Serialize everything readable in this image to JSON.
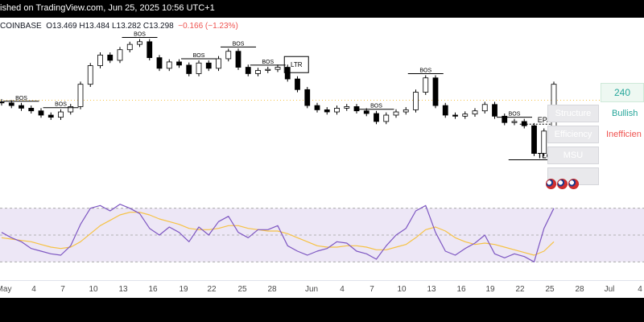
{
  "header": {
    "published_text": "ished on TradingView.com, Jun 25, 2025 10:56 UTC+1"
  },
  "symbol": {
    "exchange": "COINBASE",
    "ohlc": "O13.469  H13.484  L13.282  C13.298",
    "change": "−0.166 (−1.23%)"
  },
  "panel": {
    "timeframe": "240",
    "rows": [
      {
        "label": "Structure",
        "value": "Bullish",
        "color": "#26a69a"
      },
      {
        "label": "Efficiency",
        "value": "Inefficien",
        "color": "#ef5350"
      },
      {
        "label": "MSU",
        "value": "",
        "color": ""
      },
      {
        "label": "",
        "value": "",
        "color": ""
      }
    ]
  },
  "markers": {
    "bos": "BOS",
    "ltr": "LTR",
    "epa": "EPA",
    "tlq": "TLQ"
  },
  "colors": {
    "up_candle": "#ffffff",
    "down_candle": "#000000",
    "rsi_line": "#7e57c2",
    "rsi_ma": "#f6c244",
    "rsi_band": "#ede7f6",
    "bull": "#26a69a",
    "bear": "#ef5350"
  },
  "chart_data": [
    {
      "type": "candlestick",
      "ylim": [
        11.6,
        14.4
      ],
      "x": [
        "Apr 30",
        "May 1",
        "May 2",
        "May 3",
        "May 4",
        "May 5",
        "May 6",
        "May 7",
        "May 8",
        "May 9",
        "May 10",
        "May 11",
        "May 12",
        "May 13",
        "May 14",
        "May 15",
        "May 16",
        "May 17",
        "May 18",
        "May 19",
        "May 20",
        "May 21",
        "May 22",
        "May 23",
        "May 24",
        "May 25",
        "May 26",
        "May 27",
        "May 28",
        "May 29",
        "May 30",
        "May 31",
        "Jun 1",
        "Jun 2",
        "Jun 3",
        "Jun 4",
        "Jun 5",
        "Jun 6",
        "Jun 7",
        "Jun 8",
        "Jun 9",
        "Jun 10",
        "Jun 11",
        "Jun 12",
        "Jun 13",
        "Jun 14",
        "Jun 15",
        "Jun 16",
        "Jun 17",
        "Jun 18",
        "Jun 19",
        "Jun 20",
        "Jun 21",
        "Jun 22",
        "Jun 23",
        "Jun 24",
        "Jun 25"
      ],
      "close": [
        12.95,
        12.9,
        12.85,
        12.8,
        12.72,
        12.68,
        12.78,
        12.88,
        13.3,
        13.65,
        13.85,
        13.75,
        13.95,
        14.05,
        14.1,
        13.8,
        13.6,
        13.72,
        13.66,
        13.5,
        13.7,
        13.6,
        13.78,
        13.92,
        13.62,
        13.5,
        13.56,
        13.58,
        13.62,
        13.4,
        13.2,
        12.9,
        12.82,
        12.78,
        12.85,
        12.88,
        12.8,
        12.75,
        12.6,
        12.72,
        12.78,
        12.82,
        13.15,
        13.42,
        12.9,
        12.72,
        12.7,
        12.74,
        12.8,
        12.92,
        12.7,
        12.58,
        12.6,
        12.52,
        12.0,
        12.42,
        13.3
      ],
      "events": [
        {
          "label": "BOS",
          "date": "May 2"
        },
        {
          "label": "BOS",
          "date": "May 6"
        },
        {
          "label": "BOS",
          "date": "May 14"
        },
        {
          "label": "BOS",
          "date": "May 20"
        },
        {
          "label": "BOS",
          "date": "May 24"
        },
        {
          "label": "BOS",
          "date": "May 27"
        },
        {
          "label": "LTR",
          "date": "May 29"
        },
        {
          "label": "BOS",
          "date": "Jun 7"
        },
        {
          "label": "BOS",
          "date": "Jun 12"
        },
        {
          "label": "BOS",
          "date": "Jun 21"
        },
        {
          "label": "EPA",
          "date": "Jun 24"
        },
        {
          "label": "TLQ",
          "date": "Jun 24"
        }
      ]
    },
    {
      "type": "line",
      "x_ticks": [
        "May",
        "4",
        "7",
        "10",
        "13",
        "16",
        "19",
        "22",
        "25",
        "28",
        "Jun",
        "4",
        "7",
        "10",
        "13",
        "16",
        "19",
        "22",
        "25",
        "28",
        "Jul",
        "4"
      ],
      "series": [
        {
          "values": [
            52,
            48,
            45,
            40,
            38,
            36,
            35,
            42,
            58,
            70,
            72,
            68,
            73,
            70,
            66,
            55,
            50,
            56,
            52,
            45,
            56,
            50,
            60,
            64,
            52,
            48,
            54,
            54,
            57,
            42,
            38,
            35,
            38,
            40,
            45,
            44,
            38,
            36,
            32,
            42,
            50,
            55,
            68,
            72,
            52,
            38,
            35,
            40,
            44,
            50,
            36,
            33,
            36,
            34,
            30,
            55,
            70
          ]
        },
        {
          "values": [
            48,
            47,
            46,
            45,
            43,
            41,
            40,
            41,
            45,
            51,
            57,
            61,
            65,
            67,
            67,
            65,
            62,
            60,
            58,
            55,
            54,
            54,
            55,
            57,
            57,
            55,
            54,
            53,
            53,
            51,
            48,
            45,
            42,
            41,
            41,
            42,
            42,
            41,
            39,
            39,
            41,
            43,
            48,
            54,
            56,
            53,
            48,
            45,
            43,
            44,
            43,
            41,
            39,
            37,
            35,
            38,
            45
          ]
        }
      ],
      "ylim": [
        20,
        80
      ],
      "bands": [
        30,
        50,
        70
      ]
    }
  ]
}
